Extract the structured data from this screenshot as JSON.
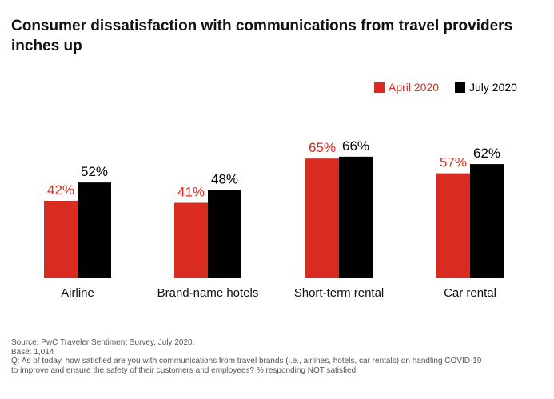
{
  "title": "Consumer dissatisfaction with communications from travel providers inches up",
  "legend": [
    {
      "label": "April 2020",
      "color": "#d92b1f",
      "text_color": "#d92b1f"
    },
    {
      "label": "July 2020",
      "color": "#000000",
      "text_color": "#000000"
    }
  ],
  "chart_data": {
    "type": "bar",
    "title": "Consumer dissatisfaction with communications from travel providers inches up",
    "categories": [
      "Airline",
      "Brand-name hotels",
      "Short-term rental",
      "Car rental"
    ],
    "series": [
      {
        "name": "April 2020",
        "values": [
          42,
          41,
          65,
          57
        ],
        "labels": [
          "42%",
          "41%",
          "65%",
          "57%"
        ],
        "color": "#d92b1f"
      },
      {
        "name": "July 2020",
        "values": [
          52,
          48,
          66,
          62
        ],
        "labels": [
          "52%",
          "48%",
          "66%",
          "62%"
        ],
        "color": "#000000"
      }
    ],
    "ylim": [
      0,
      100
    ],
    "grid": false,
    "legend_position": "top-right"
  },
  "footnote": {
    "source": "Source: PwC Traveler Sentiment Survey, July 2020.",
    "base": "Base: 1,014",
    "question_line1": "Q: As of today, how satisfied are you with communications from travel brands (i.e., airlines, hotels, car rentals) on handling COVID-19",
    "question_line2": "to improve and ensure the safety of their customers and employees? % responding NOT satisfied"
  }
}
